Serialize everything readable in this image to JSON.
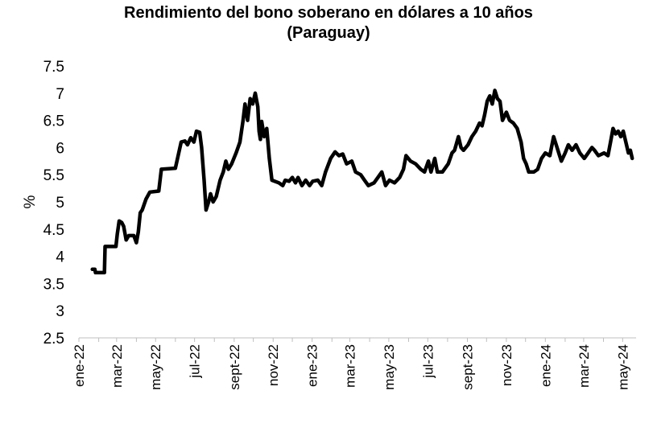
{
  "chart_data": {
    "type": "line",
    "title": "Rendimiento del bono soberano en dólares a 10 años",
    "subtitle": "(Paraguay)",
    "xlabel": "",
    "ylabel": "%",
    "ylim": [
      2.5,
      7.5
    ],
    "yticks": [
      "2.5",
      "3",
      "3.5",
      "4",
      "4.5",
      "5",
      "5.5",
      "6",
      "6.5",
      "7",
      "7.5"
    ],
    "xticks": [
      "ene-22",
      "mar-22",
      "may-22",
      "jul-22",
      "sept-22",
      "nov-22",
      "ene-23",
      "mar-23",
      "may-23",
      "jul-23",
      "sept-23",
      "nov-23",
      "ene-24",
      "mar-24",
      "may-24"
    ],
    "grid": false,
    "legend": "none",
    "line_color": "#000000",
    "series": [
      {
        "points": [
          [
            "2022-01-22",
            3.76
          ],
          [
            "2022-01-26",
            3.76
          ],
          [
            "2022-01-27",
            3.7
          ],
          [
            "2022-02-05",
            3.7
          ],
          [
            "2022-02-10",
            3.7
          ],
          [
            "2022-02-11",
            4.18
          ],
          [
            "2022-02-28",
            4.18
          ],
          [
            "2022-03-02",
            4.4
          ],
          [
            "2022-03-05",
            4.65
          ],
          [
            "2022-03-09",
            4.62
          ],
          [
            "2022-03-12",
            4.55
          ],
          [
            "2022-03-16",
            4.3
          ],
          [
            "2022-03-20",
            4.38
          ],
          [
            "2022-03-28",
            4.38
          ],
          [
            "2022-04-01",
            4.25
          ],
          [
            "2022-04-04",
            4.45
          ],
          [
            "2022-04-07",
            4.8
          ],
          [
            "2022-04-10",
            4.85
          ],
          [
            "2022-04-16",
            5.05
          ],
          [
            "2022-04-22",
            5.18
          ],
          [
            "2022-05-06",
            5.2
          ],
          [
            "2022-05-10",
            5.6
          ],
          [
            "2022-06-01",
            5.62
          ],
          [
            "2022-06-10",
            6.1
          ],
          [
            "2022-06-16",
            6.12
          ],
          [
            "2022-06-20",
            6.05
          ],
          [
            "2022-06-25",
            6.18
          ],
          [
            "2022-06-30",
            6.1
          ],
          [
            "2022-07-04",
            6.3
          ],
          [
            "2022-07-09",
            6.28
          ],
          [
            "2022-07-12",
            6.0
          ],
          [
            "2022-07-16",
            5.4
          ],
          [
            "2022-07-19",
            4.85
          ],
          [
            "2022-07-23",
            5.0
          ],
          [
            "2022-07-26",
            5.15
          ],
          [
            "2022-07-30",
            5.0
          ],
          [
            "2022-08-04",
            5.1
          ],
          [
            "2022-08-10",
            5.4
          ],
          [
            "2022-08-15",
            5.55
          ],
          [
            "2022-08-19",
            5.75
          ],
          [
            "2022-08-23",
            5.6
          ],
          [
            "2022-08-28",
            5.7
          ],
          [
            "2022-09-04",
            5.9
          ],
          [
            "2022-09-10",
            6.1
          ],
          [
            "2022-09-15",
            6.5
          ],
          [
            "2022-09-18",
            6.8
          ],
          [
            "2022-09-22",
            6.5
          ],
          [
            "2022-09-26",
            6.9
          ],
          [
            "2022-09-30",
            6.8
          ],
          [
            "2022-10-04",
            7.0
          ],
          [
            "2022-10-08",
            6.75
          ],
          [
            "2022-10-10",
            6.3
          ],
          [
            "2022-10-12",
            6.15
          ],
          [
            "2022-10-14",
            6.48
          ],
          [
            "2022-10-18",
            6.2
          ],
          [
            "2022-10-22",
            6.35
          ],
          [
            "2022-10-26",
            5.8
          ],
          [
            "2022-10-30",
            5.4
          ],
          [
            "2022-11-10",
            5.35
          ],
          [
            "2022-11-16",
            5.3
          ],
          [
            "2022-11-20",
            5.4
          ],
          [
            "2022-11-26",
            5.38
          ],
          [
            "2022-12-01",
            5.45
          ],
          [
            "2022-12-06",
            5.35
          ],
          [
            "2022-12-10",
            5.45
          ],
          [
            "2022-12-16",
            5.3
          ],
          [
            "2022-12-22",
            5.4
          ],
          [
            "2022-12-28",
            5.3
          ],
          [
            "2023-01-02",
            5.38
          ],
          [
            "2023-01-10",
            5.4
          ],
          [
            "2023-01-16",
            5.3
          ],
          [
            "2023-01-22",
            5.55
          ],
          [
            "2023-01-30",
            5.8
          ],
          [
            "2023-02-06",
            5.92
          ],
          [
            "2023-02-12",
            5.85
          ],
          [
            "2023-02-18",
            5.88
          ],
          [
            "2023-02-24",
            5.7
          ],
          [
            "2023-03-04",
            5.75
          ],
          [
            "2023-03-10",
            5.55
          ],
          [
            "2023-03-18",
            5.5
          ],
          [
            "2023-03-24",
            5.4
          ],
          [
            "2023-03-30",
            5.3
          ],
          [
            "2023-04-08",
            5.35
          ],
          [
            "2023-04-14",
            5.45
          ],
          [
            "2023-04-20",
            5.55
          ],
          [
            "2023-04-26",
            5.3
          ],
          [
            "2023-05-02",
            5.4
          ],
          [
            "2023-05-10",
            5.35
          ],
          [
            "2023-05-18",
            5.45
          ],
          [
            "2023-05-24",
            5.6
          ],
          [
            "2023-05-28",
            5.85
          ],
          [
            "2023-06-04",
            5.75
          ],
          [
            "2023-06-12",
            5.7
          ],
          [
            "2023-06-20",
            5.6
          ],
          [
            "2023-06-26",
            5.55
          ],
          [
            "2023-07-02",
            5.75
          ],
          [
            "2023-07-06",
            5.55
          ],
          [
            "2023-07-12",
            5.8
          ],
          [
            "2023-07-16",
            5.55
          ],
          [
            "2023-07-24",
            5.55
          ],
          [
            "2023-08-02",
            5.7
          ],
          [
            "2023-08-08",
            5.9
          ],
          [
            "2023-08-12",
            5.95
          ],
          [
            "2023-08-18",
            6.2
          ],
          [
            "2023-08-22",
            6.0
          ],
          [
            "2023-08-26",
            5.95
          ],
          [
            "2023-09-02",
            6.05
          ],
          [
            "2023-09-08",
            6.2
          ],
          [
            "2023-09-14",
            6.3
          ],
          [
            "2023-09-20",
            6.45
          ],
          [
            "2023-09-24",
            6.4
          ],
          [
            "2023-09-28",
            6.6
          ],
          [
            "2023-10-02",
            6.85
          ],
          [
            "2023-10-06",
            6.95
          ],
          [
            "2023-10-10",
            6.8
          ],
          [
            "2023-10-14",
            7.05
          ],
          [
            "2023-10-18",
            6.9
          ],
          [
            "2023-10-22",
            6.85
          ],
          [
            "2023-10-26",
            6.5
          ],
          [
            "2023-11-01",
            6.65
          ],
          [
            "2023-11-06",
            6.5
          ],
          [
            "2023-11-12",
            6.45
          ],
          [
            "2023-11-18",
            6.35
          ],
          [
            "2023-11-24",
            6.1
          ],
          [
            "2023-11-28",
            5.8
          ],
          [
            "2023-12-02",
            5.7
          ],
          [
            "2023-12-06",
            5.55
          ],
          [
            "2023-12-14",
            5.55
          ],
          [
            "2023-12-20",
            5.6
          ],
          [
            "2023-12-26",
            5.8
          ],
          [
            "2024-01-01",
            5.9
          ],
          [
            "2024-01-08",
            5.85
          ],
          [
            "2024-01-14",
            6.2
          ],
          [
            "2024-01-18",
            6.05
          ],
          [
            "2024-01-22",
            5.9
          ],
          [
            "2024-01-26",
            5.75
          ],
          [
            "2024-02-01",
            5.9
          ],
          [
            "2024-02-06",
            6.05
          ],
          [
            "2024-02-12",
            5.95
          ],
          [
            "2024-02-18",
            6.05
          ],
          [
            "2024-02-24",
            5.9
          ],
          [
            "2024-03-02",
            5.8
          ],
          [
            "2024-03-08",
            5.9
          ],
          [
            "2024-03-14",
            6.0
          ],
          [
            "2024-03-18",
            5.95
          ],
          [
            "2024-03-24",
            5.85
          ],
          [
            "2024-04-02",
            5.9
          ],
          [
            "2024-04-08",
            5.85
          ],
          [
            "2024-04-12",
            6.1
          ],
          [
            "2024-04-16",
            6.35
          ],
          [
            "2024-04-20",
            6.25
          ],
          [
            "2024-04-24",
            6.3
          ],
          [
            "2024-04-28",
            6.2
          ],
          [
            "2024-05-02",
            6.3
          ],
          [
            "2024-05-06",
            6.1
          ],
          [
            "2024-05-10",
            5.9
          ],
          [
            "2024-05-13",
            5.95
          ],
          [
            "2024-05-16",
            5.8
          ]
        ]
      }
    ]
  }
}
